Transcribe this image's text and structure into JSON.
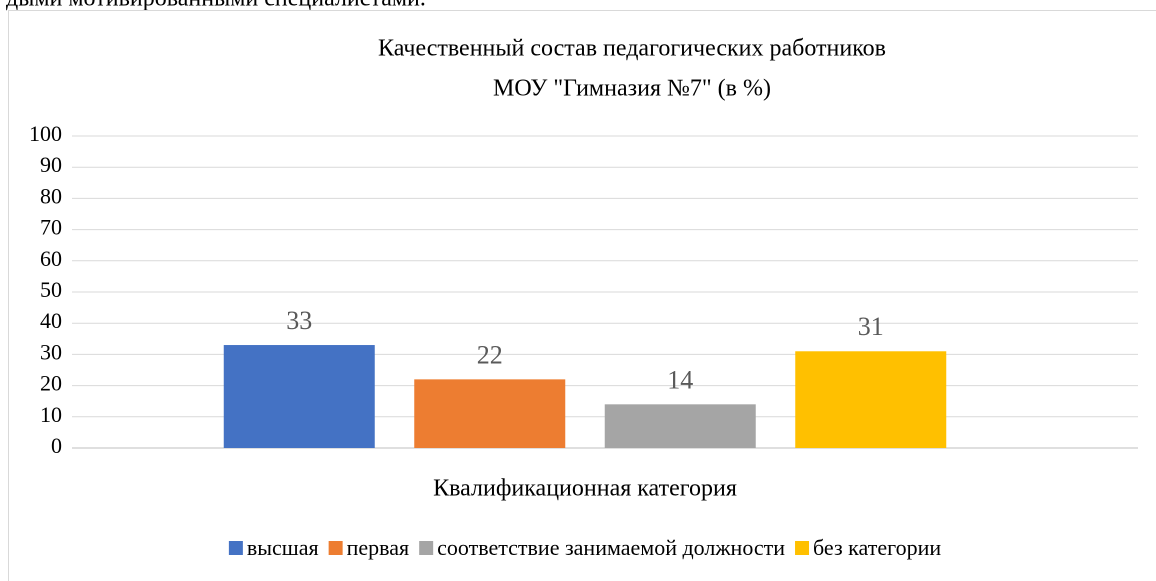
{
  "top_text": "дыми мотивированными специалистами.",
  "chart_data": {
    "type": "bar",
    "title": [
      "Качественный состав педагогических работников",
      "МОУ \"Гимназия №7\" (в %)"
    ],
    "categories": [
      "Квалификационная категория"
    ],
    "series": [
      {
        "name": "высшая",
        "color": "#4472c4",
        "values": [
          33
        ]
      },
      {
        "name": "первая",
        "color": "#ed7d31",
        "values": [
          22
        ]
      },
      {
        "name": "соответствие занимаемой должности",
        "color": "#a5a5a5",
        "values": [
          14
        ]
      },
      {
        "name": "без категории",
        "color": "#ffc000",
        "values": [
          31
        ]
      }
    ],
    "ylim": [
      0,
      100
    ],
    "yticks": [
      0,
      10,
      20,
      30,
      40,
      50,
      60,
      70,
      80,
      90,
      100
    ],
    "grid": true,
    "legend": "bottom",
    "data_labels": true
  }
}
